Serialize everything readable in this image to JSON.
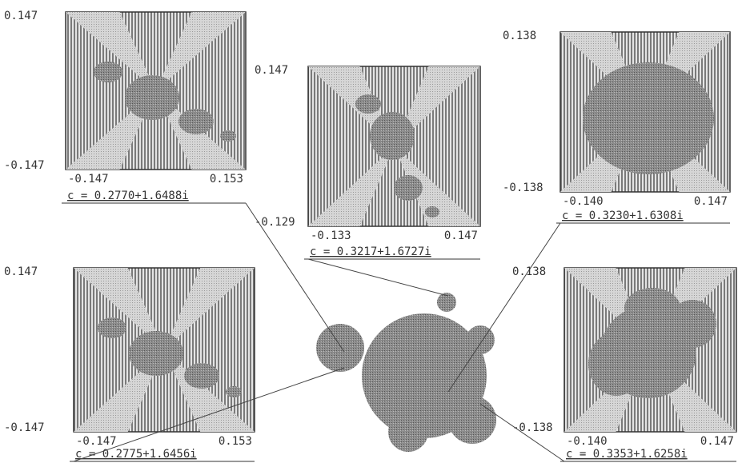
{
  "panels": [
    {
      "y_top": "0.147",
      "y_bottom": "-0.147",
      "x_left": "-0.147",
      "x_right": "0.153",
      "caption": "c = 0.2770+1.6488i"
    },
    {
      "y_top": "0.147",
      "y_bottom": "-0.129",
      "x_left": "-0.133",
      "x_right": "0.147",
      "caption": "c = 0.3217+1.6727i"
    },
    {
      "y_top": "0.138",
      "y_bottom": "-0.138",
      "x_left": "-0.140",
      "x_right": "0.147",
      "caption": "c = 0.3230+1.6308i"
    },
    {
      "y_top": "0.147",
      "y_bottom": "-0.147",
      "x_left": "-0.147",
      "x_right": "0.153",
      "caption": "c = 0.2775+1.6456i"
    },
    {
      "y_top": "0.138",
      "y_bottom": "-0.138",
      "x_left": "-0.140",
      "x_right": "0.147",
      "caption": "c = 0.3353+1.6258i"
    }
  ]
}
